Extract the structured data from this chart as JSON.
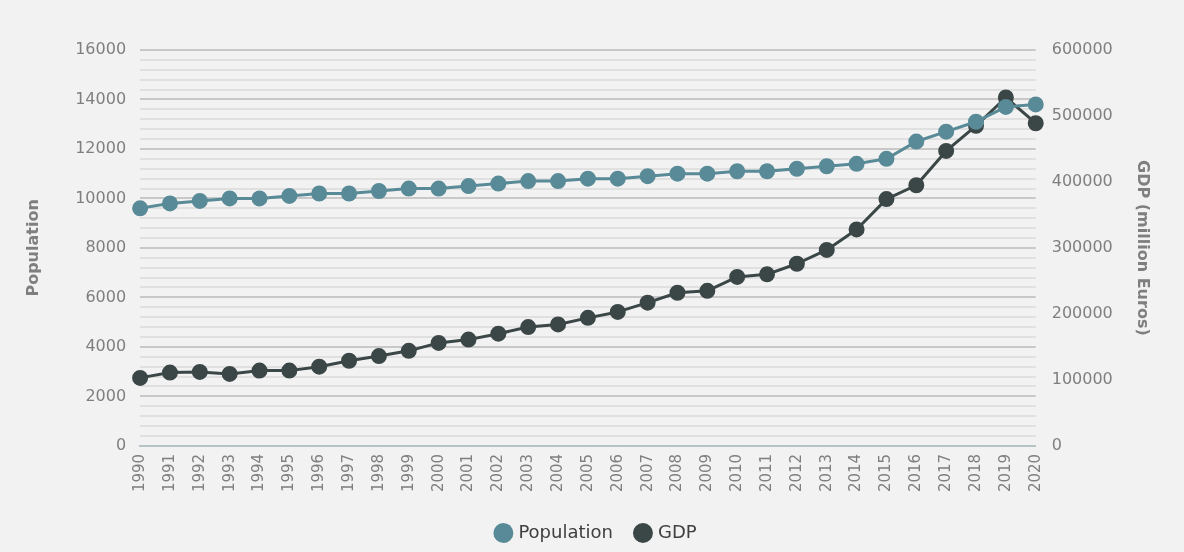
{
  "chart_data": {
    "type": "line",
    "categories": [
      "1990",
      "1991",
      "1992",
      "1993",
      "1994",
      "1995",
      "1996",
      "1997",
      "1998",
      "1999",
      "2000",
      "2001",
      "2002",
      "2003",
      "2004",
      "2005",
      "2006",
      "2007",
      "2008",
      "2009",
      "2010",
      "2011",
      "2012",
      "2013",
      "2014",
      "2015",
      "2016",
      "2017",
      "2018",
      "2019",
      "2020"
    ],
    "series": [
      {
        "name": "GDP",
        "color": "#3b4646",
        "axis": "y2",
        "values": [
          103000,
          111000,
          112000,
          109000,
          114000,
          114000,
          120000,
          129000,
          136000,
          144000,
          156000,
          161000,
          170000,
          180000,
          184000,
          194000,
          203000,
          217000,
          232000,
          235000,
          256000,
          260000,
          276000,
          297000,
          328000,
          374000,
          395000,
          447000,
          485000,
          528000,
          489000
        ]
      },
      {
        "name": "Population",
        "color": "#588a97",
        "values": [
          9600,
          9800,
          9900,
          10000,
          10000,
          10100,
          10200,
          10200,
          10300,
          10400,
          10400,
          10500,
          10600,
          10700,
          10700,
          10800,
          10800,
          10900,
          11000,
          11000,
          11100,
          11100,
          11200,
          11300,
          11400,
          11600,
          12300,
          12700,
          13100,
          13700,
          13800
        ]
      }
    ],
    "ylabel": "Population",
    "y2label": "GDP (million Euros)",
    "ylim": [
      0,
      16000
    ],
    "yticks": [
      0,
      {
        "value": 400,
        "label": null
      },
      {
        "value": 800,
        "label": null
      },
      {
        "value": 1200,
        "label": null
      },
      {
        "value": 1600,
        "label": null
      },
      2000,
      {
        "value": 2400,
        "label": null
      },
      {
        "value": 2800,
        "label": null
      },
      {
        "value": 3200,
        "label": null
      },
      {
        "value": 3600,
        "label": null
      },
      4000,
      {
        "value": 4400,
        "label": null
      },
      {
        "value": 4800,
        "label": null
      },
      {
        "value": 5200,
        "label": null
      },
      {
        "value": 5600,
        "label": null
      },
      6000,
      {
        "value": 6400,
        "label": null
      },
      {
        "value": 6800,
        "label": null
      },
      {
        "value": 7200,
        "label": null
      },
      {
        "value": 7600,
        "label": null
      },
      8000,
      {
        "value": 8400,
        "label": null
      },
      {
        "value": 8800,
        "label": null
      },
      {
        "value": 9200,
        "label": null
      },
      {
        "value": 9600,
        "label": null
      },
      10000,
      {
        "value": 10400,
        "label": null
      },
      {
        "value": 10800,
        "label": null
      },
      {
        "value": 11200,
        "label": null
      },
      {
        "value": 11600,
        "label": null
      },
      12000,
      {
        "value": 12400,
        "label": null
      },
      {
        "value": 12800,
        "label": null
      },
      {
        "value": 13200,
        "label": null
      },
      {
        "value": 13600,
        "label": null
      },
      14000,
      {
        "value": 14400,
        "label": null
      },
      {
        "value": 14800,
        "label": null
      },
      {
        "value": 15200,
        "label": null
      },
      {
        "value": 15600,
        "label": null
      },
      16000
    ],
    "y2lim": [
      0,
      600000
    ],
    "y2ticks": [
      0,
      100000,
      200000,
      300000,
      400000,
      500000,
      600000
    ],
    "grid": "y",
    "legend": "bottom",
    "marker": "circle",
    "line_style": "solid"
  }
}
